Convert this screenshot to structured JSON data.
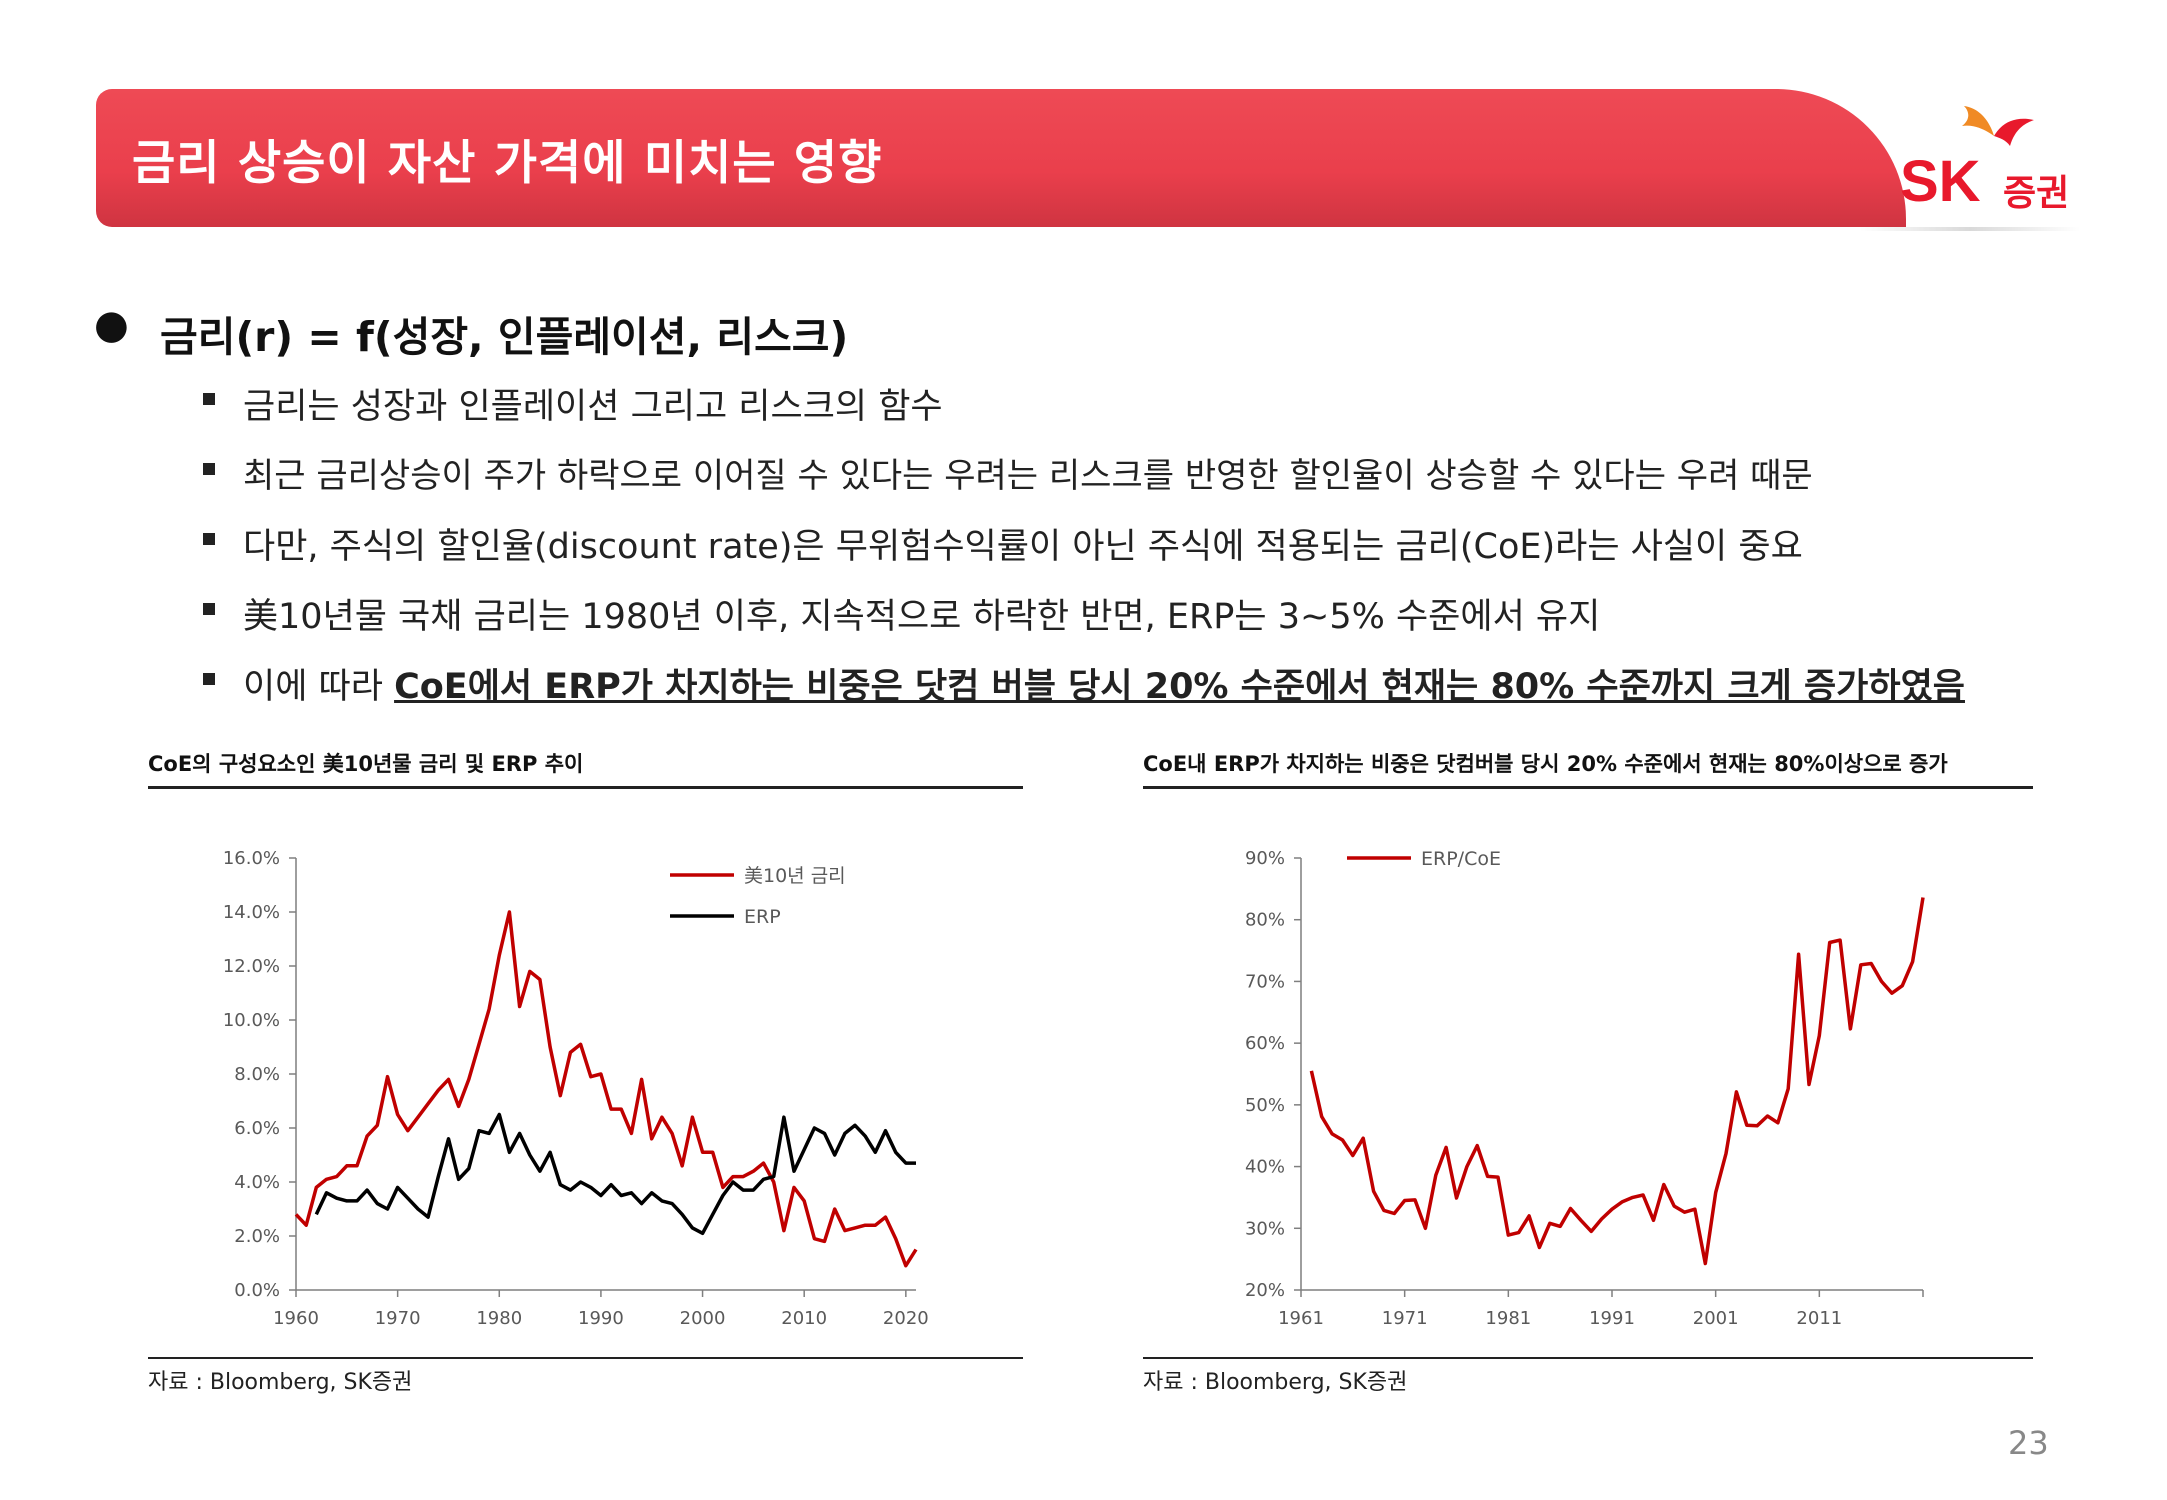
{
  "header": {
    "title": "금리 상승이 자산 가격에 미치는 영향",
    "logo_sk": "SK",
    "logo_kr": "증권"
  },
  "main_point": "금리(r) = f(성장, 인플레이션, 리스크)",
  "sub_points": [
    {
      "text": "금리는 성장과 인플레이션 그리고 리스크의 함수"
    },
    {
      "text": "최근 금리상승이 주가 하락으로 이어질 수 있다는 우려는 리스크를 반영한 할인율이 상승할 수 있다는 우려 때문"
    },
    {
      "text": "다만, 주식의 할인율(discount rate)은 무위험수익률이 아닌 주식에 적용되는 금리(CoE)라는 사실이 중요"
    },
    {
      "text": "美10년물 국채 금리는 1980년 이후, 지속적으로 하락한 반면, ERP는 3~5% 수준에서 유지"
    },
    {
      "prefix": "이에 따라 ",
      "bold": "CoE에서 ERP가 차지하는 비중은 닷컴 버블 당시 20% 수준에서 현재는 80% 수준까지 크게 증가하였음"
    }
  ],
  "page_number": "23",
  "colors": {
    "accent": "#e8404c",
    "series_red": "#c00000",
    "series_black": "#000000"
  },
  "chart_data": [
    {
      "type": "line",
      "title": "CoE의 구성요소인 美10년물 금리 및 ERP 추이",
      "source": "자료 : Bloomberg, SK증권",
      "xlabel": "",
      "ylabel": "",
      "xlim": [
        1960,
        2021
      ],
      "ylim": [
        0,
        16
      ],
      "x_ticks": [
        "1960",
        "1970",
        "1980",
        "1990",
        "2000",
        "2010",
        "2020"
      ],
      "y_ticks": [
        "0.0%",
        "2.0%",
        "4.0%",
        "6.0%",
        "8.0%",
        "10.0%",
        "12.0%",
        "14.0%",
        "16.0%"
      ],
      "legend_position": "top-right",
      "series": [
        {
          "name": "美10년 금리",
          "color": "#c00000",
          "x": [
            1960,
            1961,
            1962,
            1963,
            1964,
            1965,
            1966,
            1967,
            1968,
            1969,
            1970,
            1971,
            1972,
            1973,
            1974,
            1975,
            1976,
            1977,
            1978,
            1979,
            1980,
            1981,
            1982,
            1983,
            1984,
            1985,
            1986,
            1987,
            1988,
            1989,
            1990,
            1991,
            1992,
            1993,
            1994,
            1995,
            1996,
            1997,
            1998,
            1999,
            2000,
            2001,
            2002,
            2003,
            2004,
            2005,
            2006,
            2007,
            2008,
            2009,
            2010,
            2011,
            2012,
            2013,
            2014,
            2015,
            2016,
            2017,
            2018,
            2019,
            2020,
            2021
          ],
          "values": [
            2.8,
            2.4,
            3.8,
            4.1,
            4.2,
            4.6,
            4.6,
            5.7,
            6.1,
            7.9,
            6.5,
            5.9,
            6.4,
            6.9,
            7.4,
            7.8,
            6.8,
            7.8,
            9.1,
            10.4,
            12.4,
            14.0,
            10.5,
            11.8,
            11.5,
            9.0,
            7.2,
            8.8,
            9.1,
            7.9,
            8.0,
            6.7,
            6.7,
            5.8,
            7.8,
            5.6,
            6.4,
            5.8,
            4.6,
            6.4,
            5.1,
            5.1,
            3.8,
            4.2,
            4.2,
            4.4,
            4.7,
            4.0,
            2.2,
            3.8,
            3.3,
            1.9,
            1.8,
            3.0,
            2.2,
            2.3,
            2.4,
            2.4,
            2.7,
            1.9,
            0.9,
            1.5
          ]
        },
        {
          "name": "ERP",
          "color": "#000000",
          "x": [
            1962,
            1963,
            1964,
            1965,
            1966,
            1967,
            1968,
            1969,
            1970,
            1971,
            1972,
            1973,
            1974,
            1975,
            1976,
            1977,
            1978,
            1979,
            1980,
            1981,
            1982,
            1983,
            1984,
            1985,
            1986,
            1987,
            1988,
            1989,
            1990,
            1991,
            1992,
            1993,
            1994,
            1995,
            1996,
            1997,
            1998,
            1999,
            2000,
            2001,
            2002,
            2003,
            2004,
            2005,
            2006,
            2007,
            2008,
            2009,
            2010,
            2011,
            2012,
            2013,
            2014,
            2015,
            2016,
            2017,
            2018,
            2019,
            2020,
            2021
          ],
          "values": [
            2.8,
            3.6,
            3.4,
            3.3,
            3.3,
            3.7,
            3.2,
            3.0,
            3.8,
            3.4,
            3.0,
            2.7,
            4.2,
            5.6,
            4.1,
            4.5,
            5.9,
            5.8,
            6.5,
            5.1,
            5.8,
            5.0,
            4.4,
            5.1,
            3.9,
            3.7,
            4.0,
            3.8,
            3.5,
            3.9,
            3.5,
            3.6,
            3.2,
            3.6,
            3.3,
            3.2,
            2.8,
            2.3,
            2.1,
            2.8,
            3.5,
            4.0,
            3.7,
            3.7,
            4.1,
            4.2,
            6.4,
            4.4,
            5.2,
            6.0,
            5.8,
            5.0,
            5.8,
            6.1,
            5.7,
            5.1,
            5.9,
            5.1,
            4.7,
            4.7
          ]
        }
      ]
    },
    {
      "type": "line",
      "title": "CoE내 ERP가 차지하는 비중은 닷컴버블 당시 20% 수준에서 현재는 80%이상으로 증가",
      "source": "자료 : Bloomberg, SK증권",
      "xlabel": "",
      "ylabel": "",
      "xlim": [
        1961,
        2021
      ],
      "ylim": [
        20,
        90
      ],
      "x_ticks": [
        "1961",
        "1971",
        "1981",
        "1991",
        "2001",
        "2011"
      ],
      "y_ticks": [
        "20%",
        "30%",
        "40%",
        "50%",
        "60%",
        "70%",
        "80%",
        "90%"
      ],
      "legend_position": "top-left",
      "series": [
        {
          "name": "ERP/CoE",
          "color": "#c00000",
          "x": [
            1962,
            1963,
            1964,
            1965,
            1966,
            1967,
            1968,
            1969,
            1970,
            1971,
            1972,
            1973,
            1974,
            1975,
            1976,
            1977,
            1978,
            1979,
            1980,
            1981,
            1982,
            1983,
            1984,
            1985,
            1986,
            1987,
            1988,
            1989,
            1990,
            1991,
            1992,
            1993,
            1994,
            1995,
            1996,
            1997,
            1998,
            1999,
            2000,
            2001,
            2002,
            2003,
            2004,
            2005,
            2006,
            2007,
            2008,
            2009,
            2010,
            2011,
            2012,
            2013,
            2014,
            2015,
            2016,
            2017,
            2018,
            2019,
            2020,
            2021
          ],
          "values": [
            55.5,
            48.1,
            45.3,
            44.3,
            41.8,
            44.6,
            36.0,
            32.9,
            32.4,
            34.5,
            34.6,
            30.0,
            38.6,
            43.1,
            34.9,
            40.0,
            43.4,
            38.4,
            38.3,
            28.9,
            29.3,
            32.0,
            26.9,
            30.8,
            30.3,
            33.2,
            31.3,
            29.5,
            31.5,
            33.1,
            34.3,
            35.0,
            35.4,
            31.3,
            37.1,
            33.6,
            32.6,
            33.1,
            24.3,
            35.8,
            42.1,
            52.1,
            46.7,
            46.6,
            48.2,
            47.1,
            52.6,
            74.4,
            53.3,
            61.2,
            76.3,
            76.7,
            62.3,
            72.7,
            72.9,
            70.0,
            68.1,
            69.3,
            73.2,
            83.6
          ]
        }
      ]
    }
  ]
}
